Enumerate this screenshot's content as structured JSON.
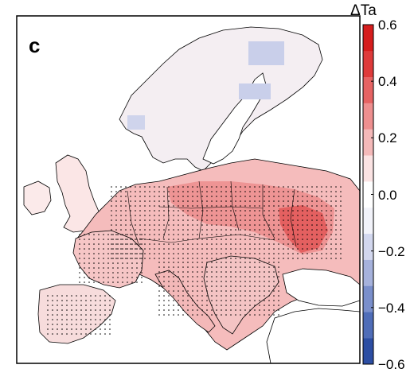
{
  "panel_label": "c",
  "colorbar": {
    "title": "ΔTa",
    "min": -0.6,
    "max": 0.6,
    "ticks": [
      {
        "value": 0.6,
        "label": "0.6"
      },
      {
        "value": 0.4,
        "label": "0.4"
      },
      {
        "value": 0.2,
        "label": "0.2"
      },
      {
        "value": 0.0,
        "label": "0.0"
      },
      {
        "value": -0.2,
        "label": "−0.2"
      },
      {
        "value": -0.4,
        "label": "−0.4"
      },
      {
        "value": -0.6,
        "label": "−0.6"
      }
    ],
    "colors": [
      "#2c4ea3",
      "#4f6db8",
      "#7a8fcb",
      "#a6b2dc",
      "#d2d7ee",
      "#f2f3fa",
      "#ffffff",
      "#fbe3e3",
      "#f4b9b9",
      "#ee8f8f",
      "#e66363",
      "#de3a3a",
      "#d61d1d"
    ]
  },
  "map": {
    "background": "#ffffff",
    "stipple_color": "#000000"
  }
}
